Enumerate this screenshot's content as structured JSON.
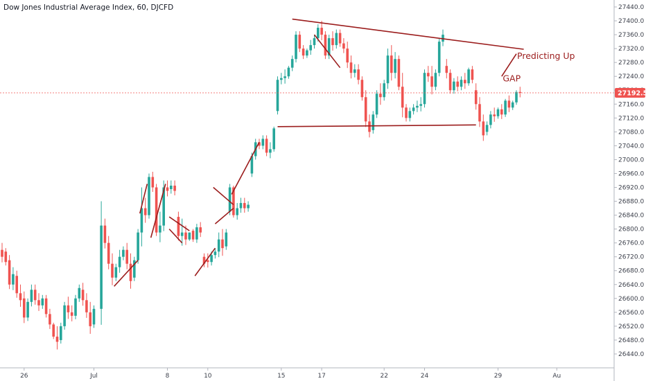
{
  "chart_data": {
    "type": "candlestick",
    "title": "Dow Jones Industrial Average Index, 60, DJCFD",
    "ylim": [
      26400,
      27460
    ],
    "yticks": [
      26440,
      26480,
      26520,
      26560,
      26600,
      26640,
      26680,
      26720,
      26760,
      26800,
      26840,
      26880,
      26920,
      26960,
      27000,
      27040,
      27080,
      27120,
      27160,
      27200,
      27240,
      27280,
      27320,
      27360,
      27400,
      27440
    ],
    "ytick_labels": [
      "26440.0",
      "26480.0",
      "26520.0",
      "26560.0",
      "26600.0",
      "26640.0",
      "26680.0",
      "26720.0",
      "26760.0",
      "26800.0",
      "26840.0",
      "26880.0",
      "26920.0",
      "26960.0",
      "27000.0",
      "27040.0",
      "27080.0",
      "27120.0",
      "27160.0",
      "27200.0",
      "27240.0",
      "27280.0",
      "27320.0",
      "27360.0",
      "27400.0",
      "27440.0"
    ],
    "xlim": [
      0,
      160
    ],
    "xticks": [
      {
        "bar": 6,
        "label": "26"
      },
      {
        "bar": 25,
        "label": "Jul"
      },
      {
        "bar": 45,
        "label": "8"
      },
      {
        "bar": 56,
        "label": "10"
      },
      {
        "bar": 76,
        "label": "15"
      },
      {
        "bar": 87,
        "label": "17"
      },
      {
        "bar": 104,
        "label": "22"
      },
      {
        "bar": 115,
        "label": "24"
      },
      {
        "bar": 135,
        "label": "29"
      },
      {
        "bar": 151,
        "label": "Au"
      }
    ],
    "last_price": 27192.5,
    "last_price_label": "27192.5",
    "up_color": "#26a69a",
    "down_color": "#ef5350",
    "annotation_color": "#9b1c1c",
    "grid": false,
    "candles": [
      {
        "o": 26740,
        "h": 26760,
        "c": 26720
      },
      {
        "o": 26735,
        "h": 26745,
        "c": 26705
      },
      {
        "o": 26710,
        "h": 26725,
        "c": 26640
      },
      {
        "o": 26640,
        "h": 26690,
        "c": 26670
      },
      {
        "o": 26665,
        "h": 26680,
        "c": 26615
      },
      {
        "o": 26615,
        "h": 26640,
        "c": 26595
      },
      {
        "o": 26600,
        "h": 26620,
        "c": 26545
      },
      {
        "o": 26545,
        "h": 26600,
        "c": 26590
      },
      {
        "o": 26590,
        "h": 26640,
        "c": 26625
      },
      {
        "o": 26625,
        "h": 26640,
        "c": 26595
      },
      {
        "o": 26595,
        "h": 26615,
        "c": 26580
      },
      {
        "o": 26580,
        "h": 26610,
        "c": 26600
      },
      {
        "o": 26600,
        "h": 26610,
        "c": 26555
      },
      {
        "o": 26555,
        "h": 26570,
        "c": 26525
      },
      {
        "o": 26525,
        "h": 26530,
        "c": 26490
      },
      {
        "o": 26490,
        "h": 26520,
        "c": 26475
      },
      {
        "o": 26480,
        "h": 26530,
        "c": 26520
      },
      {
        "o": 26520,
        "h": 26590,
        "c": 26580
      },
      {
        "o": 26580,
        "h": 26605,
        "c": 26560
      },
      {
        "o": 26560,
        "h": 26580,
        "c": 26550
      },
      {
        "o": 26550,
        "h": 26610,
        "c": 26600
      },
      {
        "o": 26600,
        "h": 26640,
        "c": 26630
      },
      {
        "o": 26625,
        "h": 26645,
        "c": 26595
      },
      {
        "o": 26595,
        "h": 26615,
        "c": 26560
      },
      {
        "o": 26560,
        "h": 26590,
        "c": 26520
      },
      {
        "o": 26525,
        "h": 26580,
        "c": 26570
      },
      {
        "o": 26570,
        "h": 26880,
        "c": 26810
      },
      {
        "o": 26810,
        "h": 26830,
        "c": 26760
      },
      {
        "o": 26760,
        "h": 26780,
        "c": 26700
      },
      {
        "o": 26700,
        "h": 26730,
        "c": 26660
      },
      {
        "o": 26660,
        "h": 26700,
        "c": 26690
      },
      {
        "o": 26690,
        "h": 26740,
        "c": 26720
      },
      {
        "o": 26720,
        "h": 26750,
        "c": 26740
      },
      {
        "o": 26740,
        "h": 26760,
        "c": 26700
      },
      {
        "o": 26700,
        "h": 26730,
        "c": 26650
      },
      {
        "o": 26660,
        "h": 26720,
        "c": 26710
      },
      {
        "o": 26710,
        "h": 26800,
        "c": 26790
      },
      {
        "o": 26790,
        "h": 26920,
        "c": 26860
      },
      {
        "o": 26860,
        "h": 26890,
        "c": 26840
      },
      {
        "o": 26840,
        "h": 26960,
        "c": 26950
      },
      {
        "o": 26950,
        "h": 26965,
        "c": 26920
      },
      {
        "o": 26920,
        "h": 26930,
        "c": 26790
      },
      {
        "o": 26790,
        "h": 26850,
        "c": 26810
      },
      {
        "o": 26810,
        "h": 26940,
        "c": 26920
      },
      {
        "o": 26920,
        "h": 26940,
        "c": 26910
      },
      {
        "o": 26915,
        "h": 26940,
        "c": 26925
      },
      {
        "o": 26925,
        "h": 26940,
        "c": 26910
      },
      {
        "o": 26835,
        "h": 26850,
        "c": 26780
      },
      {
        "o": 26780,
        "h": 26830,
        "c": 26790
      },
      {
        "o": 26790,
        "h": 26810,
        "c": 26770
      },
      {
        "o": 26770,
        "h": 26790,
        "c": 26790
      },
      {
        "o": 26795,
        "h": 26800,
        "c": 26770
      },
      {
        "o": 26770,
        "h": 26815,
        "c": 26805
      },
      {
        "o": 26805,
        "h": 26820,
        "c": 26790
      },
      {
        "o": 26720,
        "h": 26730,
        "c": 26700
      },
      {
        "o": 26710,
        "h": 26730,
        "c": 26705
      },
      {
        "o": 26705,
        "h": 26735,
        "c": 26725
      },
      {
        "o": 26725,
        "h": 26745,
        "c": 26735
      },
      {
        "o": 26735,
        "h": 26790,
        "c": 26770
      },
      {
        "o": 26770,
        "h": 26800,
        "c": 26745
      },
      {
        "o": 26750,
        "h": 26800,
        "c": 26790
      },
      {
        "o": 26850,
        "h": 26930,
        "c": 26920
      },
      {
        "o": 26920,
        "h": 26925,
        "c": 26840
      },
      {
        "o": 26840,
        "h": 26875,
        "c": 26860
      },
      {
        "o": 26860,
        "h": 26890,
        "c": 26875
      },
      {
        "o": 26875,
        "h": 26890,
        "c": 26860
      },
      {
        "o": 26860,
        "h": 26880,
        "c": 26870
      },
      {
        "o": 26960,
        "h": 27020,
        "c": 27010
      },
      {
        "o": 27010,
        "h": 27060,
        "c": 27050
      },
      {
        "o": 27050,
        "h": 27060,
        "c": 27040
      },
      {
        "o": 27040,
        "h": 27070,
        "c": 27060
      },
      {
        "o": 27060,
        "h": 27070,
        "c": 27020
      },
      {
        "o": 27020,
        "h": 27050,
        "c": 27030
      },
      {
        "o": 27030,
        "h": 27095,
        "c": 27090
      },
      {
        "o": 27140,
        "h": 27240,
        "c": 27230
      },
      {
        "o": 27230,
        "h": 27250,
        "c": 27235
      },
      {
        "o": 27235,
        "h": 27260,
        "c": 27240
      },
      {
        "o": 27240,
        "h": 27270,
        "c": 27265
      },
      {
        "o": 27265,
        "h": 27300,
        "c": 27290
      },
      {
        "o": 27290,
        "h": 27370,
        "c": 27360
      },
      {
        "o": 27360,
        "h": 27370,
        "c": 27320
      },
      {
        "o": 27320,
        "h": 27330,
        "c": 27300
      },
      {
        "o": 27300,
        "h": 27320,
        "c": 27315
      },
      {
        "o": 27315,
        "h": 27345,
        "c": 27330
      },
      {
        "o": 27330,
        "h": 27360,
        "c": 27350
      },
      {
        "o": 27350,
        "h": 27390,
        "c": 27380
      },
      {
        "o": 27380,
        "h": 27400,
        "c": 27360
      },
      {
        "o": 27360,
        "h": 27370,
        "c": 27300
      },
      {
        "o": 27300,
        "h": 27360,
        "c": 27350
      },
      {
        "o": 27350,
        "h": 27370,
        "c": 27330
      },
      {
        "o": 27330,
        "h": 27375,
        "c": 27365
      },
      {
        "o": 27365,
        "h": 27375,
        "c": 27335
      },
      {
        "o": 27335,
        "h": 27350,
        "c": 27320
      },
      {
        "o": 27320,
        "h": 27340,
        "c": 27280
      },
      {
        "o": 27280,
        "h": 27300,
        "c": 27250
      },
      {
        "o": 27250,
        "h": 27275,
        "c": 27260
      },
      {
        "o": 27260,
        "h": 27275,
        "c": 27230
      },
      {
        "o": 27230,
        "h": 27240,
        "c": 27180
      },
      {
        "o": 27180,
        "h": 27200,
        "c": 27110
      },
      {
        "o": 27110,
        "h": 27130,
        "c": 27080
      },
      {
        "o": 27085,
        "h": 27140,
        "c": 27130
      },
      {
        "o": 27130,
        "h": 27200,
        "c": 27190
      },
      {
        "o": 27190,
        "h": 27220,
        "c": 27180
      },
      {
        "o": 27180,
        "h": 27230,
        "c": 27220
      },
      {
        "o": 27220,
        "h": 27320,
        "c": 27300
      },
      {
        "o": 27300,
        "h": 27330,
        "c": 27250
      },
      {
        "o": 27250,
        "h": 27310,
        "c": 27290
      },
      {
        "o": 27290,
        "h": 27300,
        "c": 27210
      },
      {
        "o": 27210,
        "h": 27250,
        "c": 27150
      },
      {
        "o": 27150,
        "h": 27160,
        "c": 27120
      },
      {
        "o": 27120,
        "h": 27150,
        "c": 27140
      },
      {
        "o": 27140,
        "h": 27160,
        "c": 27150
      },
      {
        "o": 27150,
        "h": 27170,
        "c": 27155
      },
      {
        "o": 27155,
        "h": 27180,
        "c": 27160
      },
      {
        "o": 27160,
        "h": 27260,
        "c": 27250
      },
      {
        "o": 27250,
        "h": 27270,
        "c": 27240
      },
      {
        "o": 27240,
        "h": 27270,
        "c": 27210
      },
      {
        "o": 27210,
        "h": 27260,
        "c": 27250
      },
      {
        "o": 27250,
        "h": 27350,
        "c": 27340
      },
      {
        "o": 27340,
        "h": 27375,
        "c": 27360
      },
      {
        "o": 27270,
        "h": 27290,
        "c": 27250
      },
      {
        "o": 27250,
        "h": 27260,
        "c": 27200
      },
      {
        "o": 27200,
        "h": 27235,
        "c": 27225
      },
      {
        "o": 27225,
        "h": 27240,
        "c": 27210
      },
      {
        "o": 27210,
        "h": 27240,
        "c": 27230
      },
      {
        "o": 27230,
        "h": 27250,
        "c": 27220
      },
      {
        "o": 27220,
        "h": 27265,
        "c": 27260
      },
      {
        "o": 27260,
        "h": 27270,
        "c": 27230
      },
      {
        "o": 27200,
        "h": 27220,
        "c": 27160
      },
      {
        "o": 27160,
        "h": 27180,
        "c": 27110
      },
      {
        "o": 27110,
        "h": 27130,
        "c": 27070
      },
      {
        "o": 27080,
        "h": 27110,
        "c": 27100
      },
      {
        "o": 27100,
        "h": 27140,
        "c": 27130
      },
      {
        "o": 27130,
        "h": 27150,
        "c": 27125
      },
      {
        "o": 27125,
        "h": 27150,
        "c": 27145
      },
      {
        "o": 27145,
        "h": 27160,
        "c": 27130
      },
      {
        "o": 27130,
        "h": 27175,
        "c": 27170
      },
      {
        "o": 27170,
        "h": 27185,
        "c": 27150
      },
      {
        "o": 27150,
        "h": 27170,
        "c": 27165
      },
      {
        "o": 27165,
        "h": 27200,
        "c": 27195
      },
      {
        "o": 27195,
        "h": 27210,
        "c": 27192.5
      }
    ],
    "candle_bar_index": [
      0,
      1,
      2,
      3,
      4,
      5,
      6,
      7,
      8,
      9,
      10,
      11,
      12,
      13,
      14,
      15,
      16,
      17,
      18,
      19,
      20,
      21,
      22,
      23,
      24,
      25,
      27,
      28,
      29,
      30,
      31,
      32,
      33,
      34,
      35,
      36,
      37,
      38,
      39,
      40,
      41,
      42,
      43,
      44,
      45,
      46,
      47,
      48,
      49,
      50,
      51,
      52,
      53,
      54,
      55,
      56,
      57,
      58,
      59,
      60,
      61,
      62,
      63,
      64,
      65,
      66,
      67,
      68,
      69,
      70,
      71,
      72,
      73,
      74,
      75,
      76,
      77,
      78,
      79,
      80,
      81,
      82,
      83,
      84,
      85,
      86,
      87,
      88,
      89,
      90,
      91,
      92,
      93,
      94,
      95,
      96,
      97,
      98,
      99,
      100,
      101,
      102,
      103,
      104,
      105,
      106,
      107,
      108,
      109,
      110,
      111,
      112,
      113,
      114,
      115,
      116,
      117,
      118,
      119,
      120,
      121,
      122,
      123,
      124,
      125,
      126,
      127,
      128,
      129,
      130,
      131,
      132,
      133,
      134,
      135,
      136,
      137,
      138,
      139,
      140,
      141,
      142,
      143
    ],
    "trendlines": [
      {
        "from": [
          30.5,
          26635
        ],
        "to": [
          37,
          26710
        ]
      },
      {
        "from": [
          37.5,
          26845
        ],
        "to": [
          39.5,
          26930
        ]
      },
      {
        "from": [
          40.5,
          26775
        ],
        "to": [
          44.5,
          26930
        ]
      },
      {
        "from": [
          45.5,
          26835
        ],
        "to": [
          51,
          26795
        ]
      },
      {
        "from": [
          45.5,
          26800
        ],
        "to": [
          49,
          26760
        ]
      },
      {
        "from": [
          52.5,
          26665
        ],
        "to": [
          58,
          26745
        ]
      },
      {
        "from": [
          57.5,
          26920
        ],
        "to": [
          63,
          26870
        ]
      },
      {
        "from": [
          58,
          26815
        ],
        "to": [
          63,
          26860
        ]
      },
      {
        "from": [
          62.5,
          26900
        ],
        "to": [
          70,
          27050
        ]
      },
      {
        "from": [
          79,
          27405
        ],
        "to": [
          142,
          27318
        ]
      },
      {
        "from": [
          85,
          27360
        ],
        "to": [
          92,
          27265
        ]
      },
      {
        "from": [
          75,
          27095
        ],
        "to": [
          129,
          27100
        ]
      },
      {
        "from": [
          136,
          27240
        ],
        "to": [
          140,
          27305
        ]
      }
    ],
    "annotations": [
      {
        "text": "Predicting Up",
        "bar": 140.2,
        "price": 27290
      },
      {
        "text": "GAP",
        "bar": 136.3,
        "price": 27225
      }
    ]
  }
}
